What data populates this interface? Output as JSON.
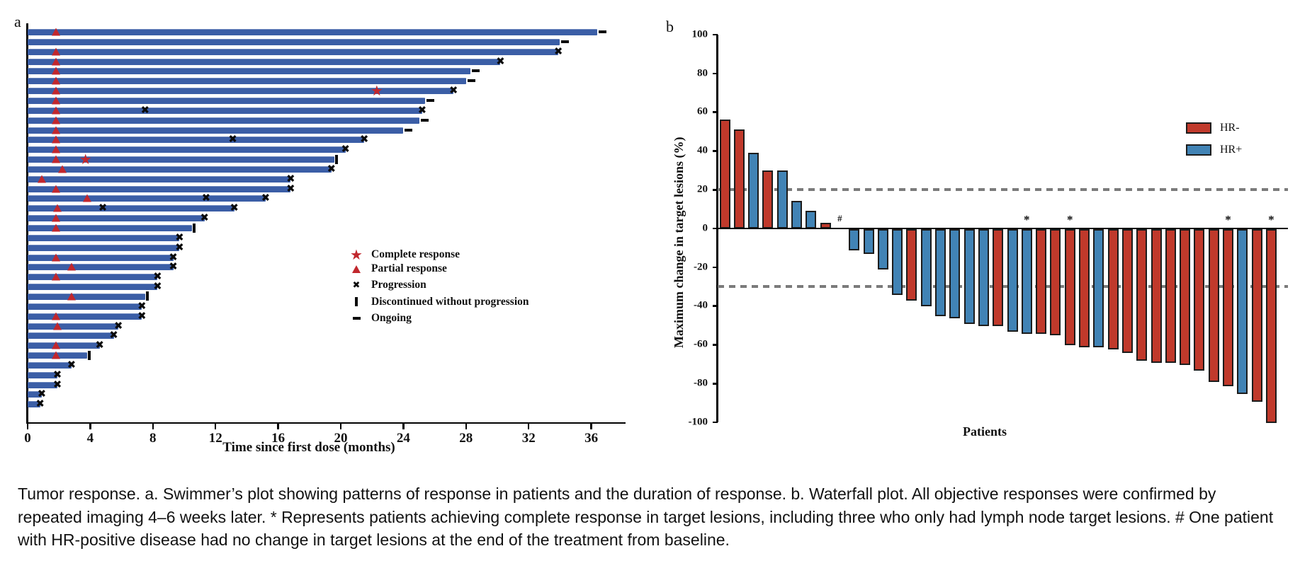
{
  "caption": "Tumor response. a. Swimmer’s plot showing patterns of response in patients and the duration of response. b. Waterfall plot. All objective responses were confirmed by repeated imaging 4–6 weeks later. * Represents patients achieving complete response in target lesions, including three who only had lymph node target lesions. # One patient with HR-positive disease had no change in target lesions at the end of the treatment from baseline.",
  "panel_a": {
    "label": "a",
    "xlabel": "Time since first dose (months)",
    "x_ticks": [
      0,
      4,
      8,
      12,
      16,
      20,
      24,
      28,
      32,
      36
    ],
    "legend": [
      {
        "icon": "star",
        "label": "Complete response"
      },
      {
        "icon": "triangle",
        "label": "Partial response"
      },
      {
        "icon": "cross",
        "label": "Progression"
      },
      {
        "icon": "bar",
        "label": "Discontinued without progression"
      },
      {
        "icon": "dash",
        "label": "Ongoing"
      }
    ]
  },
  "panel_b": {
    "label": "b",
    "xlabel": "Patients",
    "ylabel": "Maximum change in target lesions (%)",
    "y_ticks": [
      100,
      80,
      60,
      40,
      20,
      0,
      -20,
      -40,
      -60,
      -80,
      -100
    ],
    "legend": [
      {
        "group": "HR-",
        "color": "#c0392b"
      },
      {
        "group": "HR+",
        "color": "#4183b5"
      }
    ]
  },
  "colors": {
    "swimmer_bar": "#3b5ea6",
    "swimmer_bar_highlight": "#6c86bd",
    "marker_red": "#c1272d",
    "waterfall_red": "#c0392b",
    "waterfall_blue": "#4183b5",
    "dashed_gray": "#7b7b7b"
  },
  "chart_data": [
    {
      "type": "bar",
      "name": "swimmers_plot",
      "orientation": "horizontal",
      "xlabel": "Time since first dose (months)",
      "xlim": [
        0,
        38
      ],
      "x_ticks": [
        0,
        4,
        8,
        12,
        16,
        20,
        24,
        28,
        32,
        36
      ],
      "legend_entries": [
        "Complete response",
        "Partial response",
        "Progression",
        "Discontinued without progression",
        "Ongoing"
      ],
      "rows": [
        {
          "m": 36.4,
          "pr": 1.8,
          "end": "ongoing"
        },
        {
          "m": 34.0,
          "end": "ongoing"
        },
        {
          "m": 33.9,
          "pr": 1.8,
          "end": "x"
        },
        {
          "m": 30.2,
          "pr": 1.8,
          "end": "x"
        },
        {
          "m": 28.3,
          "pr": 1.8,
          "end": "ongoing"
        },
        {
          "m": 28.0,
          "pr": 1.8,
          "end": "ongoing"
        },
        {
          "m": 27.2,
          "pr": 1.8,
          "cr": 22.3,
          "end": "x"
        },
        {
          "m": 25.4,
          "pr": 1.8,
          "end": "ongoing"
        },
        {
          "m": 25.2,
          "pr": 1.8,
          "xs": [
            7.5
          ],
          "end": "x"
        },
        {
          "m": 25.0,
          "pr": 1.8,
          "end": "ongoing"
        },
        {
          "m": 24.0,
          "pr": 1.8,
          "end": "ongoing"
        },
        {
          "m": 21.5,
          "pr": 1.8,
          "xs": [
            13.1
          ],
          "end": "x"
        },
        {
          "m": 20.3,
          "pr": 1.8,
          "end": "x"
        },
        {
          "m": 19.6,
          "pr": 1.8,
          "cr": 3.7,
          "end": "disc"
        },
        {
          "m": 19.4,
          "pr": 2.2,
          "end": "x"
        },
        {
          "m": 16.8,
          "pr": 0.9,
          "end": "x"
        },
        {
          "m": 16.8,
          "pr": 1.8,
          "end": "x"
        },
        {
          "m": 15.2,
          "pr": 3.8,
          "xs": [
            11.4
          ],
          "end": "x"
        },
        {
          "m": 13.2,
          "pr": 1.9,
          "xs": [
            4.8
          ],
          "end": "x"
        },
        {
          "m": 11.3,
          "pr": 1.8,
          "end": "x"
        },
        {
          "m": 10.5,
          "pr": 1.8,
          "end": "disc"
        },
        {
          "m": 9.7,
          "end": "x"
        },
        {
          "m": 9.7,
          "end": "x"
        },
        {
          "m": 9.3,
          "pr": 1.8,
          "end": "x"
        },
        {
          "m": 9.3,
          "pr": 2.8,
          "end": "x"
        },
        {
          "m": 8.3,
          "pr": 1.8,
          "end": "x"
        },
        {
          "m": 8.3,
          "end": "x"
        },
        {
          "m": 7.5,
          "pr": 2.8,
          "end": "disc"
        },
        {
          "m": 7.3,
          "end": "x"
        },
        {
          "m": 7.3,
          "pr": 1.8,
          "end": "x"
        },
        {
          "m": 5.8,
          "pr": 1.9,
          "end": "x"
        },
        {
          "m": 5.5,
          "end": "x"
        },
        {
          "m": 4.6,
          "pr": 1.8,
          "end": "x"
        },
        {
          "m": 3.8,
          "pr": 1.8,
          "end": "disc"
        },
        {
          "m": 2.8,
          "end": "x"
        },
        {
          "m": 1.9,
          "end": "x"
        },
        {
          "m": 1.9,
          "end": "x"
        },
        {
          "m": 0.9,
          "end": "x"
        },
        {
          "m": 0.8,
          "end": "x"
        }
      ]
    },
    {
      "type": "bar",
      "name": "waterfall_plot",
      "xlabel": "Patients",
      "ylabel": "Maximum change in target lesions (%)",
      "ylim": [
        -100,
        100
      ],
      "y_ticks": [
        100,
        80,
        60,
        40,
        20,
        0,
        -20,
        -40,
        -60,
        -80,
        -100
      ],
      "reference_lines": [
        20,
        -30
      ],
      "legend_position": "upper-right",
      "patients": [
        {
          "v": 56,
          "g": "HR-"
        },
        {
          "v": 51,
          "g": "HR-"
        },
        {
          "v": 39,
          "g": "HR+"
        },
        {
          "v": 30,
          "g": "HR-"
        },
        {
          "v": 30,
          "g": "HR+"
        },
        {
          "v": 14,
          "g": "HR+"
        },
        {
          "v": 9,
          "g": "HR+"
        },
        {
          "v": 3,
          "g": "HR-"
        },
        {
          "v": 0,
          "g": "HR+",
          "flag": "#"
        },
        {
          "v": -11,
          "g": "HR+"
        },
        {
          "v": -13,
          "g": "HR+"
        },
        {
          "v": -21,
          "g": "HR+"
        },
        {
          "v": -34,
          "g": "HR+"
        },
        {
          "v": -37,
          "g": "HR-"
        },
        {
          "v": -40,
          "g": "HR+"
        },
        {
          "v": -45,
          "g": "HR+"
        },
        {
          "v": -46,
          "g": "HR+"
        },
        {
          "v": -49,
          "g": "HR+"
        },
        {
          "v": -50,
          "g": "HR+"
        },
        {
          "v": -50,
          "g": "HR-"
        },
        {
          "v": -53,
          "g": "HR+"
        },
        {
          "v": -54,
          "g": "HR+",
          "flag": "*"
        },
        {
          "v": -54,
          "g": "HR-"
        },
        {
          "v": -55,
          "g": "HR-"
        },
        {
          "v": -60,
          "g": "HR-",
          "flag": "*"
        },
        {
          "v": -61,
          "g": "HR-"
        },
        {
          "v": -61,
          "g": "HR+"
        },
        {
          "v": -62,
          "g": "HR-"
        },
        {
          "v": -64,
          "g": "HR-"
        },
        {
          "v": -68,
          "g": "HR-"
        },
        {
          "v": -69,
          "g": "HR-"
        },
        {
          "v": -69,
          "g": "HR-"
        },
        {
          "v": -70,
          "g": "HR-"
        },
        {
          "v": -73,
          "g": "HR-"
        },
        {
          "v": -79,
          "g": "HR-"
        },
        {
          "v": -81,
          "g": "HR-",
          "flag": "*"
        },
        {
          "v": -85,
          "g": "HR+"
        },
        {
          "v": -89,
          "g": "HR-"
        },
        {
          "v": -100,
          "g": "HR-",
          "flag": "*"
        }
      ]
    }
  ]
}
